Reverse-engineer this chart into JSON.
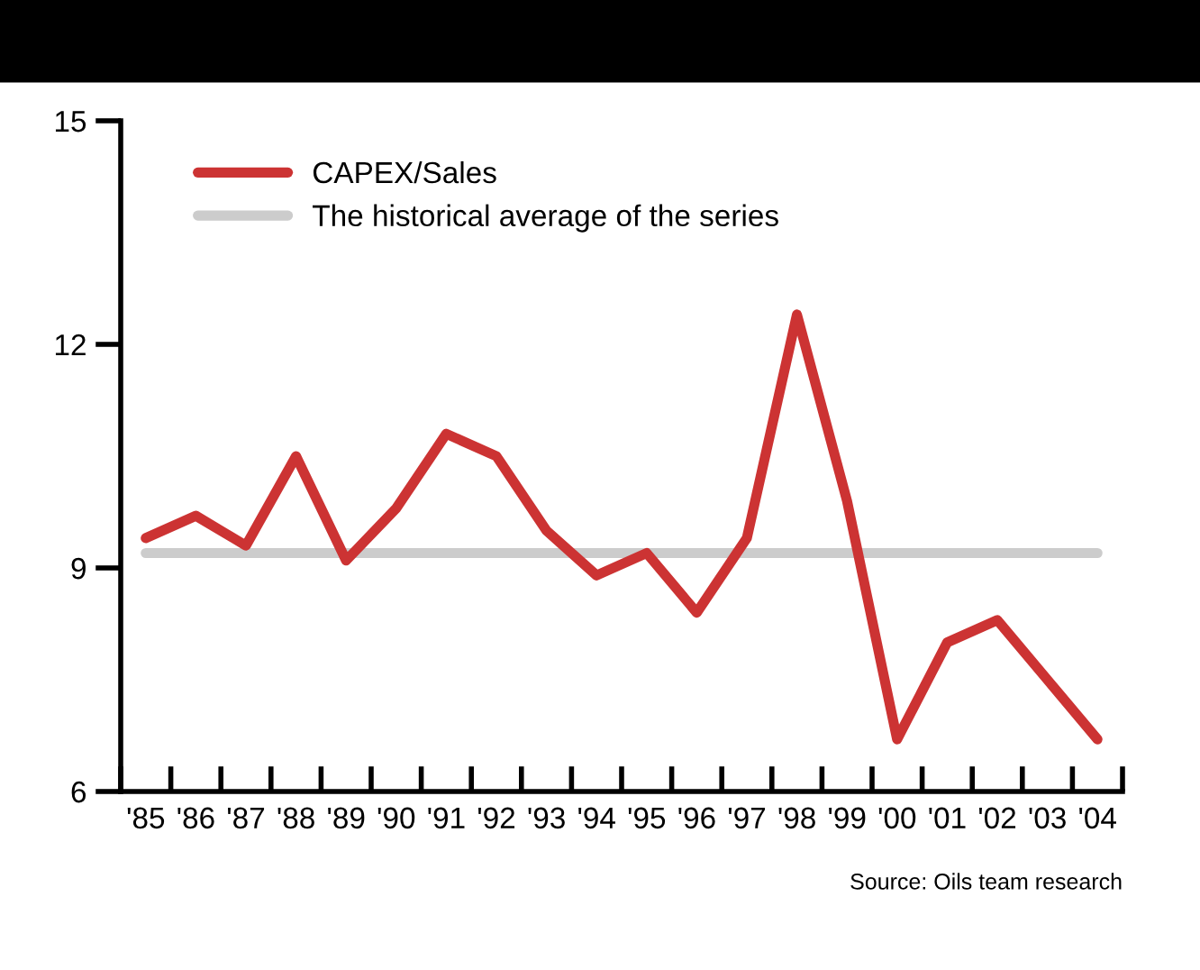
{
  "chart_data": {
    "type": "line",
    "categories": [
      "'85",
      "'86",
      "'87",
      "'88",
      "'89",
      "'90",
      "'91",
      "'92",
      "'93",
      "'94",
      "'95",
      "'96",
      "'97",
      "'98",
      "'99",
      "'00",
      "'01",
      "'02",
      "'03",
      "'04"
    ],
    "series": [
      {
        "name": "CAPEX/Sales",
        "color": "#cc3333",
        "values": [
          9.4,
          9.7,
          9.3,
          10.5,
          9.1,
          9.8,
          10.8,
          10.5,
          9.5,
          8.9,
          9.2,
          8.4,
          9.4,
          12.4,
          9.9,
          6.7,
          8.0,
          8.3,
          7.5,
          6.7
        ]
      },
      {
        "name": "The historical average of the series",
        "color": "#cccccc",
        "values": [
          9.2,
          9.2,
          9.2,
          9.2,
          9.2,
          9.2,
          9.2,
          9.2,
          9.2,
          9.2,
          9.2,
          9.2,
          9.2,
          9.2,
          9.2,
          9.2,
          9.2,
          9.2,
          9.2,
          9.2
        ]
      }
    ],
    "ylim": [
      6,
      15
    ],
    "yticks": [
      6,
      9,
      12,
      15
    ],
    "grid": false,
    "legend": "top left",
    "line_style": "solid",
    "marker": "none",
    "annotations": [
      "Source: Oils team research"
    ]
  }
}
